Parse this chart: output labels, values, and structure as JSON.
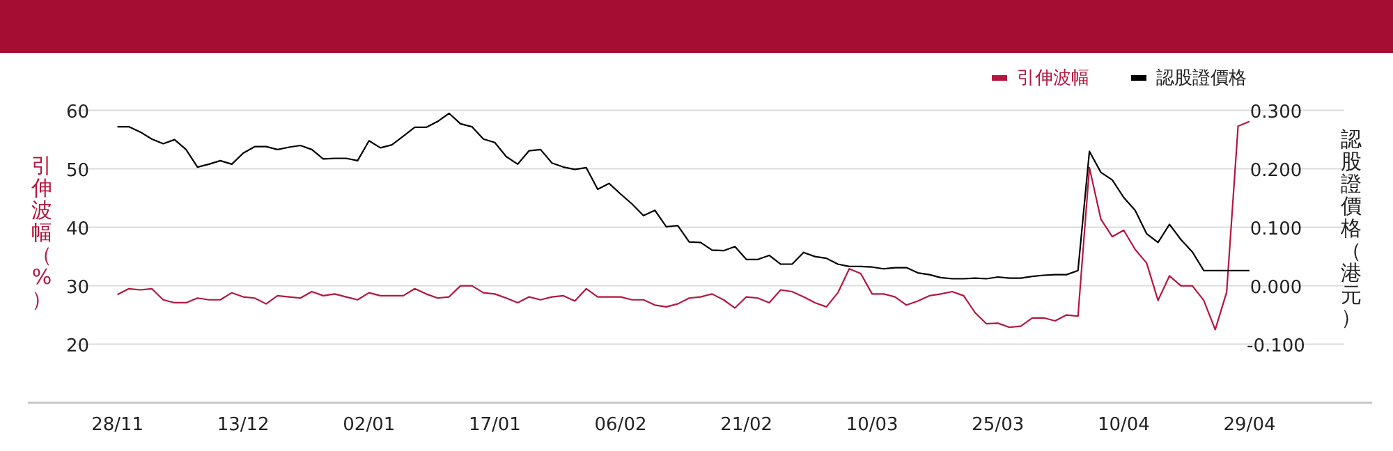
{
  "chart_data": {
    "type": "line",
    "categories": [
      "28/11",
      null,
      null,
      null,
      null,
      null,
      null,
      null,
      null,
      null,
      null,
      "13/12",
      null,
      null,
      null,
      null,
      null,
      null,
      null,
      null,
      null,
      null,
      "02/01",
      null,
      null,
      null,
      null,
      null,
      null,
      null,
      null,
      null,
      null,
      "17/01",
      null,
      null,
      null,
      null,
      null,
      null,
      null,
      null,
      null,
      null,
      "06/02",
      null,
      null,
      null,
      null,
      null,
      null,
      null,
      null,
      null,
      null,
      "21/02",
      null,
      null,
      null,
      null,
      null,
      null,
      null,
      null,
      null,
      null,
      "10/03",
      null,
      null,
      null,
      null,
      null,
      null,
      null,
      null,
      null,
      null,
      "25/03",
      null,
      null,
      null,
      null,
      null,
      null,
      null,
      null,
      null,
      null,
      "10/04",
      null,
      null,
      null,
      null,
      null,
      null,
      null,
      null,
      null,
      null,
      "29/04"
    ],
    "series": [
      {
        "name": "引伸波幅",
        "color": "#b5163f",
        "values": [
          28.5,
          29.5,
          29.3,
          29.5,
          27.6,
          27.1,
          27.1,
          27.9,
          27.6,
          27.6,
          28.8,
          28.1,
          27.9,
          26.9,
          28.3,
          28.1,
          27.9,
          29.0,
          28.3,
          28.6,
          28.1,
          27.6,
          28.8,
          28.3,
          28.3,
          28.3,
          29.5,
          28.6,
          27.9,
          28.1,
          30.0,
          30.0,
          28.8,
          28.6,
          27.9,
          27.1,
          28.1,
          27.6,
          28.1,
          28.3,
          27.4,
          29.5,
          28.1,
          28.1,
          28.1,
          27.6,
          27.6,
          26.7,
          26.4,
          26.9,
          27.9,
          28.1,
          28.6,
          27.6,
          26.2,
          28.1,
          27.9,
          27.1,
          29.3,
          29.0,
          28.1,
          27.1,
          26.4,
          28.8,
          32.9,
          32.1,
          28.6,
          28.6,
          28.1,
          26.7,
          27.4,
          28.3,
          28.6,
          29.0,
          28.3,
          25.4,
          23.5,
          23.6,
          22.9,
          23.1,
          24.5,
          24.5,
          24.0,
          25.0,
          24.8,
          50.2,
          41.4,
          38.4,
          39.5,
          36.2,
          33.9,
          27.5,
          31.7,
          30.0,
          30.0,
          27.5,
          22.5,
          28.9,
          57.3,
          58.1
        ]
      },
      {
        "name": "認股證價格",
        "color": "#000000",
        "axis": "y2",
        "values": [
          0.272,
          0.272,
          0.263,
          0.251,
          0.243,
          0.25,
          0.233,
          0.203,
          0.208,
          0.214,
          0.208,
          0.227,
          0.238,
          0.238,
          0.233,
          0.237,
          0.24,
          0.233,
          0.217,
          0.218,
          0.218,
          0.214,
          0.248,
          0.236,
          0.241,
          0.256,
          0.271,
          0.271,
          0.281,
          0.295,
          0.277,
          0.272,
          0.251,
          0.245,
          0.221,
          0.208,
          0.231,
          0.233,
          0.21,
          0.203,
          0.199,
          0.202,
          0.165,
          0.175,
          0.157,
          0.14,
          0.12,
          0.129,
          0.101,
          0.103,
          0.075,
          0.074,
          0.061,
          0.06,
          0.067,
          0.045,
          0.045,
          0.052,
          0.037,
          0.037,
          0.057,
          0.05,
          0.047,
          0.037,
          0.033,
          0.033,
          0.032,
          0.029,
          0.031,
          0.031,
          0.022,
          0.019,
          0.014,
          0.012,
          0.012,
          0.013,
          0.012,
          0.015,
          0.013,
          0.013,
          0.016,
          0.018,
          0.019,
          0.019,
          0.026,
          0.23,
          0.194,
          0.181,
          0.151,
          0.129,
          0.089,
          0.074,
          0.105,
          0.079,
          0.058,
          0.026,
          0.026,
          0.026,
          0.026,
          0.026
        ]
      }
    ],
    "ylabel": "引伸波幅（%）",
    "y2label": "認股證價格（港元）",
    "ylim": [
      10,
      60
    ],
    "yticks": [
      20,
      30,
      40,
      50,
      60
    ],
    "y2lim": [
      -0.2,
      0.3
    ],
    "y2ticks": [
      {
        "value": -0.1,
        "label": "-0.100"
      },
      {
        "value": 0,
        "label": "0.000"
      },
      {
        "value": 0.1,
        "label": "0.100"
      },
      {
        "value": 0.2,
        "label": "0.200"
      },
      {
        "value": 0.3,
        "label": "0.300"
      }
    ],
    "grid": "y",
    "legend": "top right"
  }
}
